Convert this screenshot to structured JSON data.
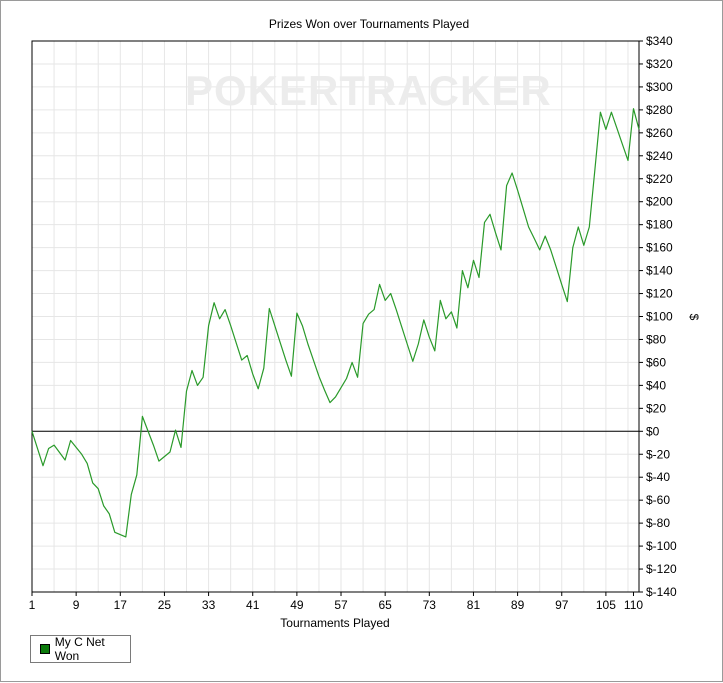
{
  "watermark": "POKERTRACKER",
  "legend": {
    "label": "My C Net Won"
  },
  "colors": {
    "series": "#2a9a2a",
    "zero_line": "#000000",
    "grid": "#e6e6e6",
    "legend_swatch": "#0b7a0b"
  },
  "chart_data": {
    "type": "line",
    "title": "Prizes Won over Tournaments Played",
    "xlabel": "Tournaments Played",
    "ylabel": "$",
    "xlim": [
      1,
      111
    ],
    "ylim": [
      -140,
      340
    ],
    "x_ticks": [
      1,
      9,
      17,
      25,
      33,
      41,
      49,
      57,
      65,
      73,
      81,
      89,
      97,
      105,
      110
    ],
    "y_ticks": [
      "$340",
      "$320",
      "$300",
      "$280",
      "$260",
      "$240",
      "$220",
      "$200",
      "$180",
      "$160",
      "$140",
      "$120",
      "$100",
      "$80",
      "$60",
      "$40",
      "$20",
      "$0",
      "$-20",
      "$-40",
      "$-60",
      "$-80",
      "$-100",
      "$-120",
      "$-140"
    ],
    "y_tick_values": [
      340,
      320,
      300,
      280,
      260,
      240,
      220,
      200,
      180,
      160,
      140,
      120,
      100,
      80,
      60,
      40,
      20,
      0,
      -20,
      -40,
      -60,
      -80,
      -100,
      -120,
      -140
    ],
    "grid": true,
    "legend_position": "bottom-left",
    "series": [
      {
        "name": "My C Net Won",
        "x": [
          1,
          3,
          4,
          5,
          7,
          8,
          10,
          11,
          12,
          13,
          14,
          15,
          16,
          18,
          19,
          20,
          21,
          23,
          24,
          26,
          27,
          28,
          29,
          30,
          31,
          32,
          33,
          34,
          35,
          36,
          37,
          38,
          39,
          40,
          41,
          42,
          43,
          44,
          45,
          46,
          47,
          48,
          49,
          50,
          51,
          52,
          53,
          54,
          55,
          56,
          57,
          58,
          59,
          60,
          61,
          62,
          63,
          64,
          65,
          66,
          67,
          68,
          69,
          70,
          71,
          72,
          73,
          74,
          75,
          76,
          77,
          78,
          79,
          80,
          81,
          82,
          83,
          84,
          85,
          86,
          87,
          88,
          89,
          90,
          91,
          92,
          93,
          94,
          95,
          96,
          97,
          98,
          99,
          100,
          101,
          102,
          103,
          104,
          105,
          106,
          107,
          108,
          109,
          110,
          111
        ],
        "y": [
          0,
          -30,
          -15,
          -12,
          -25,
          -8,
          -20,
          -28,
          -45,
          -50,
          -65,
          -72,
          -88,
          -92,
          -55,
          -38,
          13,
          -12,
          -26,
          -18,
          1,
          -14,
          35,
          53,
          40,
          47,
          92,
          112,
          98,
          106,
          92,
          77,
          62,
          66,
          50,
          37,
          55,
          107,
          92,
          77,
          62,
          48,
          103,
          92,
          76,
          62,
          48,
          36,
          25,
          30,
          38,
          46,
          60,
          47,
          94,
          102,
          106,
          128,
          114,
          120,
          106,
          91,
          76,
          61,
          76,
          97,
          82,
          70,
          114,
          98,
          104,
          90,
          140,
          125,
          149,
          134,
          182,
          189,
          173,
          158,
          214,
          225,
          210,
          194,
          178,
          168,
          158,
          170,
          158,
          143,
          128,
          113,
          160,
          178,
          162,
          178,
          228,
          278,
          263,
          278,
          264,
          250,
          236,
          281,
          263
        ]
      }
    ]
  }
}
